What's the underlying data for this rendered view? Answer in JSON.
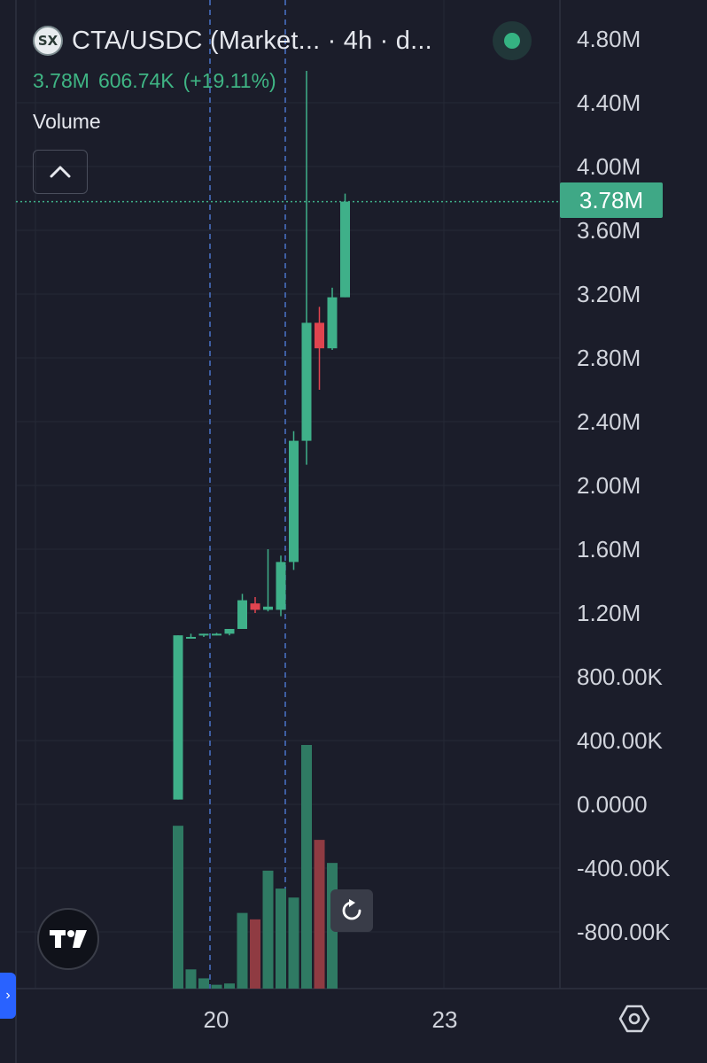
{
  "header": {
    "logo_text": "SX",
    "title": "CTA/USDC (Market... · 4h · d...",
    "status": "live",
    "ohlc": {
      "last": "3.78M",
      "change": "606.74K",
      "change_pct": "(+19.11%)"
    },
    "indicator_label": "Volume"
  },
  "price_axis": {
    "labels": [
      "4.80M",
      "4.40M",
      "4.00M",
      "3.60M",
      "3.20M",
      "2.80M",
      "2.40M",
      "2.00M",
      "1.60M",
      "1.20M",
      "800.00K",
      "400.00K",
      "0.0000",
      "-400.00K",
      "-800.00K"
    ],
    "current_price_label": "3.78M"
  },
  "time_axis": {
    "labels": [
      "20",
      "23"
    ]
  },
  "colors": {
    "background": "#1b1d2a",
    "up": "#3fb089",
    "down": "#e0444f",
    "up_volume": "#2f7a63",
    "down_volume": "#8f3b42",
    "price_label_bg": "#3fa886"
  },
  "icons": {
    "collapse": "chevron-up-icon",
    "reset": "reset-icon",
    "settings": "settings-icon",
    "logo": "tradingview-logo-icon"
  },
  "chart_data": {
    "type": "candlestick",
    "y_axis_range": [
      -1000000,
      5000000
    ],
    "current_price": 3780000,
    "candles": [
      {
        "o": 30000,
        "h": 1060000,
        "l": 30000,
        "c": 1060000,
        "v": 1270000
      },
      {
        "o": 1050000,
        "h": 1070000,
        "l": 1040000,
        "c": 1050000,
        "v": 150000
      },
      {
        "o": 1060000,
        "h": 1070000,
        "l": 1050000,
        "c": 1070000,
        "v": 80000
      },
      {
        "o": 1070000,
        "h": 1075000,
        "l": 1060000,
        "c": 1070000,
        "v": 30000
      },
      {
        "o": 1070000,
        "h": 1100000,
        "l": 1060000,
        "c": 1100000,
        "v": 40000
      },
      {
        "o": 1100000,
        "h": 1320000,
        "l": 1100000,
        "c": 1280000,
        "v": 590000
      },
      {
        "o": 1260000,
        "h": 1300000,
        "l": 1200000,
        "c": 1220000,
        "v": 540000
      },
      {
        "o": 1220000,
        "h": 1600000,
        "l": 1210000,
        "c": 1240000,
        "v": 920000
      },
      {
        "o": 1220000,
        "h": 1560000,
        "l": 1180000,
        "c": 1520000,
        "v": 780000
      },
      {
        "o": 1520000,
        "h": 2340000,
        "l": 1470000,
        "c": 2280000,
        "v": 710000
      },
      {
        "o": 2280000,
        "h": 4600000,
        "l": 2130000,
        "c": 3020000,
        "v": 1900000
      },
      {
        "o": 3020000,
        "h": 3120000,
        "l": 2600000,
        "c": 2860000,
        "v": 1160000
      },
      {
        "o": 2860000,
        "h": 3240000,
        "l": 2850000,
        "c": 3180000,
        "v": 980000
      },
      {
        "o": 3180000,
        "h": 3830000,
        "l": 3180000,
        "c": 3780000,
        "v": 0
      }
    ]
  }
}
